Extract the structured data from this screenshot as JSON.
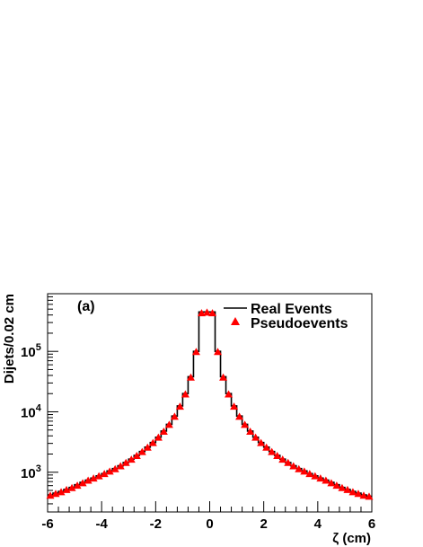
{
  "chart_data": {
    "type": "histogram",
    "panel_label": "(a)",
    "xlabel": "ζ (cm)",
    "ylabel": "Dijets/0.02 cm",
    "xlim": [
      -6,
      6
    ],
    "ylim": [
      220,
      900000
    ],
    "yscale": "log",
    "grid": false,
    "legend_position": "top-right",
    "x_ticks": [
      -6,
      -4,
      -2,
      0,
      2,
      4,
      6
    ],
    "x_tick_labels": [
      "-6",
      "-4",
      "-2",
      "0",
      "2",
      "4",
      "6"
    ],
    "y_ticks": [
      1000,
      10000,
      100000
    ],
    "y_tick_labels": [
      {
        "base": "10",
        "exp": "3"
      },
      {
        "base": "10",
        "exp": "4"
      },
      {
        "base": "10",
        "exp": "5"
      }
    ],
    "bin_width": 0.2,
    "series": [
      {
        "name": "Real Events",
        "style": "step-line",
        "color": "#000000",
        "bin_centers": [
          -5.9,
          -5.7,
          -5.5,
          -5.3,
          -5.1,
          -4.9,
          -4.7,
          -4.5,
          -4.3,
          -4.1,
          -3.9,
          -3.7,
          -3.5,
          -3.3,
          -3.1,
          -2.9,
          -2.7,
          -2.5,
          -2.3,
          -2.1,
          -1.9,
          -1.7,
          -1.5,
          -1.3,
          -1.1,
          -0.9,
          -0.7,
          -0.5,
          -0.3,
          -0.1,
          0.1,
          0.3,
          0.5,
          0.7,
          0.9,
          1.1,
          1.3,
          1.5,
          1.7,
          1.9,
          2.1,
          2.3,
          2.5,
          2.7,
          2.9,
          3.1,
          3.3,
          3.5,
          3.7,
          3.9,
          4.1,
          4.3,
          4.5,
          4.7,
          4.9,
          5.1,
          5.3,
          5.5,
          5.7,
          5.9
        ],
        "values": [
          420,
          450,
          480,
          520,
          560,
          620,
          680,
          740,
          800,
          870,
          950,
          1050,
          1150,
          1280,
          1450,
          1650,
          1900,
          2200,
          2600,
          3100,
          3800,
          4800,
          6200,
          8500,
          12500,
          20000,
          38000,
          100000,
          450000,
          450000,
          450000,
          100000,
          38000,
          20000,
          12500,
          8500,
          6200,
          4800,
          3800,
          3100,
          2600,
          2200,
          1900,
          1650,
          1450,
          1280,
          1150,
          1050,
          950,
          870,
          800,
          740,
          680,
          620,
          560,
          520,
          480,
          450,
          420,
          400
        ]
      },
      {
        "name": "Pseudoevents",
        "style": "markers",
        "marker": "triangle",
        "color": "#ff0000",
        "bin_centers": [
          -5.9,
          -5.7,
          -5.5,
          -5.3,
          -5.1,
          -4.9,
          -4.7,
          -4.5,
          -4.3,
          -4.1,
          -3.9,
          -3.7,
          -3.5,
          -3.3,
          -3.1,
          -2.9,
          -2.7,
          -2.5,
          -2.3,
          -2.1,
          -1.9,
          -1.7,
          -1.5,
          -1.3,
          -1.1,
          -0.9,
          -0.7,
          -0.5,
          -0.3,
          -0.1,
          0.1,
          0.3,
          0.5,
          0.7,
          0.9,
          1.1,
          1.3,
          1.5,
          1.7,
          1.9,
          2.1,
          2.3,
          2.5,
          2.7,
          2.9,
          3.1,
          3.3,
          3.5,
          3.7,
          3.9,
          4.1,
          4.3,
          4.5,
          4.7,
          4.9,
          5.1,
          5.3,
          5.5,
          5.7,
          5.9
        ],
        "values": [
          410,
          440,
          470,
          510,
          550,
          600,
          660,
          730,
          790,
          860,
          940,
          1030,
          1130,
          1260,
          1430,
          1620,
          1870,
          2170,
          2560,
          3060,
          3750,
          4700,
          6100,
          8300,
          12200,
          19500,
          37000,
          98000,
          430000,
          440000,
          430000,
          98000,
          37000,
          19500,
          12200,
          8300,
          6100,
          4700,
          3750,
          3060,
          2560,
          2170,
          1870,
          1620,
          1430,
          1260,
          1130,
          1030,
          940,
          860,
          790,
          730,
          660,
          600,
          550,
          510,
          470,
          440,
          410,
          395
        ]
      }
    ]
  }
}
